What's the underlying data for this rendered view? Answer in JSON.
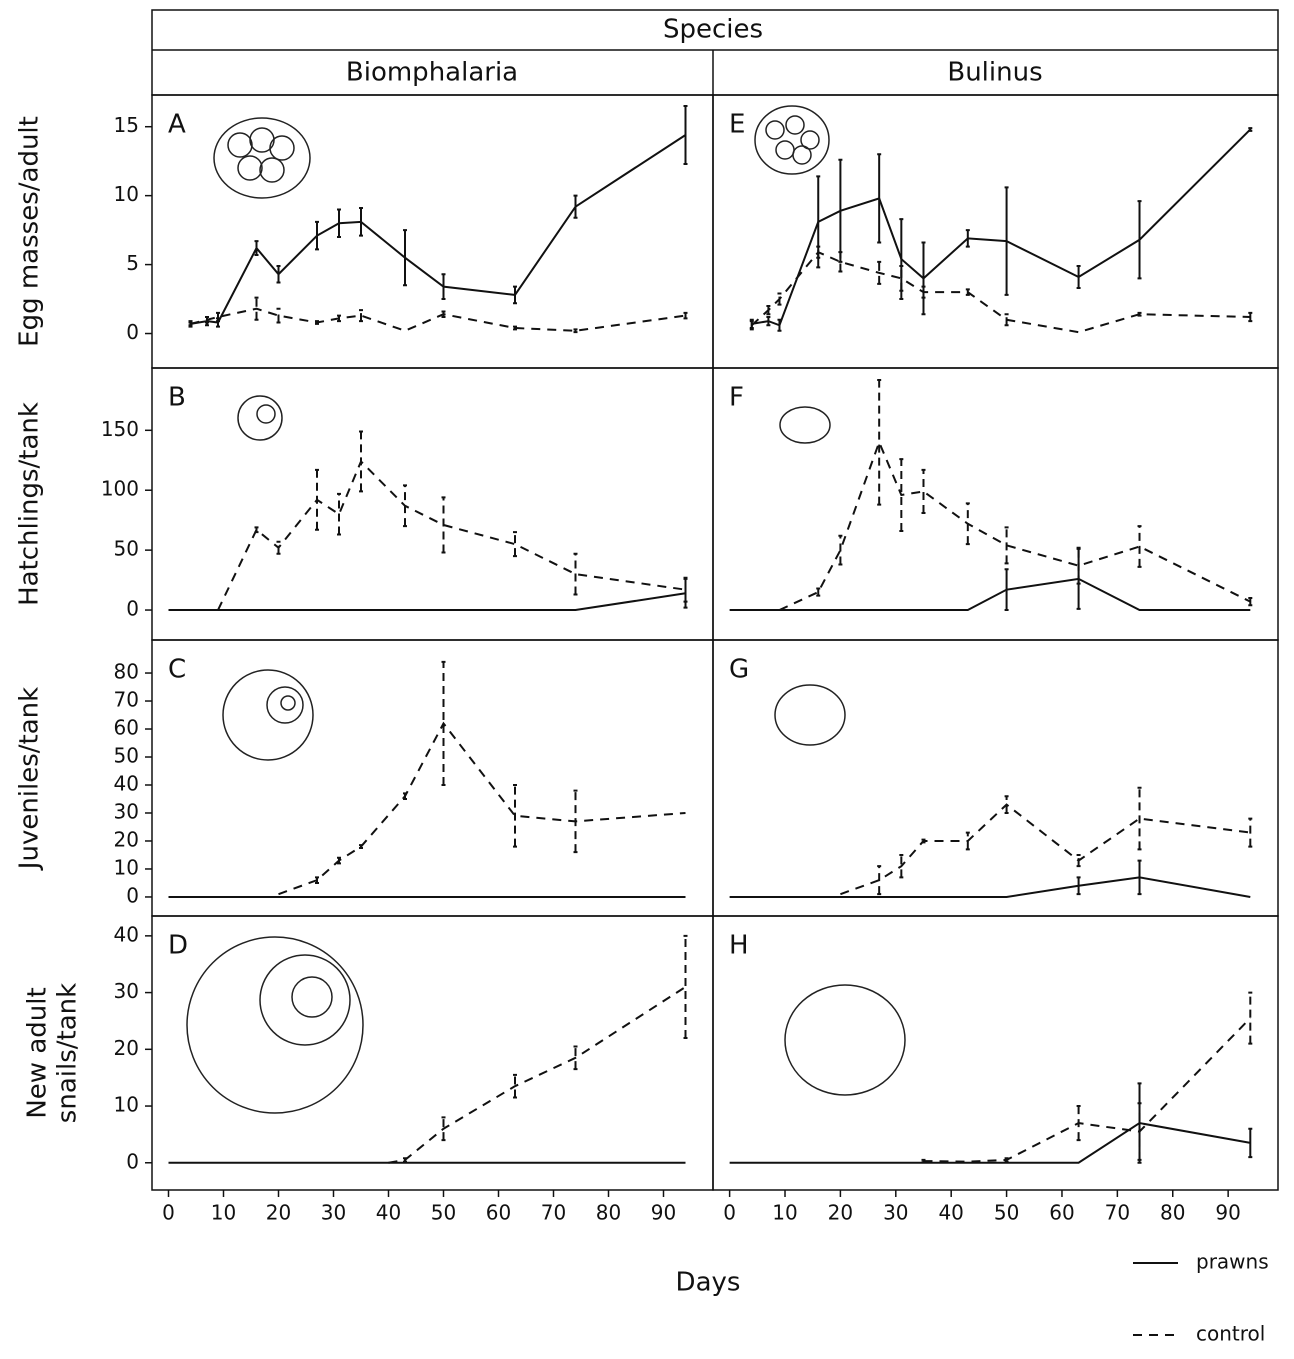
{
  "header": {
    "title": "Species",
    "columns": [
      "Biomphalaria",
      "Bulinus"
    ]
  },
  "x_label": "Days",
  "chart_data": [
    {
      "type": "line",
      "panel": "A",
      "ylabel": "Egg masses/adult",
      "xlim": [
        -3,
        99
      ],
      "ylim": [
        -2.5,
        17.3
      ],
      "yticks": [
        0,
        5,
        10,
        15
      ],
      "x": [
        4,
        7,
        9,
        16,
        20,
        27,
        31,
        35,
        43,
        50,
        63,
        74,
        94
      ],
      "series": [
        {
          "name": "prawns",
          "dash": "solid",
          "values": [
            0.7,
            0.9,
            0.8,
            6.2,
            4.3,
            7.1,
            8.0,
            8.1,
            5.5,
            3.4,
            2.8,
            9.2,
            14.4
          ],
          "errors": [
            0.2,
            0.3,
            0.3,
            0.5,
            0.6,
            1.0,
            1.0,
            1.0,
            2.0,
            0.9,
            0.6,
            0.8,
            2.1
          ]
        },
        {
          "name": "control",
          "dash": "dashed",
          "values": [
            0.7,
            1.0,
            1.2,
            1.8,
            1.3,
            0.8,
            1.1,
            1.3,
            0.2,
            1.4,
            0.4,
            0.2,
            1.3
          ],
          "errors": [
            0.1,
            0.2,
            0.3,
            0.8,
            0.5,
            0.1,
            0.2,
            0.4,
            0,
            0.2,
            0.1,
            0.1,
            0.2
          ]
        }
      ]
    },
    {
      "type": "line",
      "panel": "B",
      "ylabel": "Hatchlings/tank",
      "xlim": [
        -3,
        99
      ],
      "ylim": [
        -25,
        202
      ],
      "yticks": [
        0,
        50,
        100,
        150
      ],
      "x": [
        0,
        9,
        16,
        20,
        27,
        31,
        35,
        43,
        50,
        63,
        74,
        94
      ],
      "series": [
        {
          "name": "prawns",
          "dash": "solid",
          "values": [
            0,
            0,
            0,
            0,
            0,
            0,
            0,
            0,
            0,
            0,
            0,
            14
          ],
          "errors": [
            0,
            0,
            0,
            0,
            0,
            0,
            0,
            0,
            0,
            0,
            0,
            12
          ]
        },
        {
          "name": "control",
          "dash": "dashed",
          "values": [
            null,
            0,
            67,
            52,
            92,
            80,
            124,
            87,
            71,
            55,
            30,
            17
          ],
          "errors": [
            null,
            0,
            2,
            5,
            25,
            17,
            25,
            17,
            23,
            10,
            17,
            10
          ]
        }
      ]
    },
    {
      "type": "line",
      "panel": "C",
      "ylabel": "Juveniles/tank",
      "xlim": [
        -3,
        99
      ],
      "ylim": [
        -6.8,
        91.8
      ],
      "yticks": [
        0,
        10,
        20,
        30,
        40,
        50,
        60,
        70,
        80
      ],
      "x": [
        0,
        20,
        27,
        31,
        35,
        43,
        50,
        63,
        74,
        94
      ],
      "series": [
        {
          "name": "prawns",
          "dash": "solid",
          "values": [
            0,
            0,
            0,
            0,
            0,
            0,
            0,
            0,
            0,
            0
          ],
          "errors": [
            0,
            0,
            0,
            0,
            0,
            0,
            0,
            0,
            0,
            0
          ]
        },
        {
          "name": "control",
          "dash": "dashed",
          "values": [
            null,
            1,
            6,
            13,
            18,
            36,
            62,
            29,
            27,
            30
          ],
          "errors": [
            null,
            0,
            1,
            1,
            0.5,
            1,
            22,
            11,
            11,
            0
          ]
        }
      ]
    },
    {
      "type": "line",
      "panel": "D",
      "ylabel": [
        "New adult",
        "snails/tank"
      ],
      "xlim": [
        -3,
        99
      ],
      "ylim": [
        -4.8,
        43.5
      ],
      "yticks": [
        0,
        10,
        20,
        30,
        40
      ],
      "xticks": [
        0,
        10,
        20,
        30,
        40,
        50,
        60,
        70,
        80,
        90
      ],
      "x": [
        0,
        40,
        43,
        50,
        63,
        74,
        94
      ],
      "series": [
        {
          "name": "prawns",
          "dash": "solid",
          "values": [
            0,
            0,
            0,
            0,
            0,
            0,
            0
          ],
          "errors": [
            0,
            0,
            0,
            0,
            0,
            0,
            0
          ]
        },
        {
          "name": "control",
          "dash": "dashed",
          "values": [
            null,
            0,
            0.5,
            6,
            13.5,
            18.5,
            31
          ],
          "errors": [
            null,
            0,
            0.3,
            2,
            2,
            2,
            9
          ]
        }
      ]
    },
    {
      "type": "line",
      "panel": "E",
      "xlim": [
        -3,
        99
      ],
      "ylim": [
        -2.5,
        17.3
      ],
      "x": [
        4,
        7,
        9,
        16,
        20,
        27,
        31,
        35,
        43,
        50,
        63,
        74,
        94
      ],
      "series": [
        {
          "name": "prawns",
          "dash": "solid",
          "values": [
            0.7,
            0.9,
            0.6,
            8.1,
            8.9,
            9.8,
            5.4,
            4.0,
            6.9,
            6.7,
            4.1,
            6.8,
            14.8
          ],
          "errors": [
            0.3,
            0.3,
            0.4,
            3.3,
            3.7,
            3.2,
            2.9,
            2.6,
            0.6,
            3.9,
            0.8,
            2.8,
            0.1
          ]
        },
        {
          "name": "control",
          "dash": "dashed",
          "values": [
            0.6,
            1.7,
            2.5,
            5.9,
            5.2,
            4.4,
            4.0,
            3.0,
            3.0,
            1.0,
            0.1,
            1.4,
            1.2
          ],
          "errors": [
            0.3,
            0.3,
            0.4,
            0.4,
            0.7,
            0.8,
            0.9,
            0.4,
            0.2,
            0.4,
            0,
            0.1,
            0.3
          ]
        }
      ]
    },
    {
      "type": "line",
      "panel": "F",
      "xlim": [
        -3,
        99
      ],
      "ylim": [
        -25,
        202
      ],
      "x": [
        0,
        9,
        16,
        20,
        27,
        31,
        35,
        43,
        50,
        63,
        74,
        94
      ],
      "series": [
        {
          "name": "prawns",
          "dash": "solid",
          "values": [
            0,
            0,
            0,
            0,
            0,
            0,
            0,
            0,
            17,
            26,
            0,
            0
          ],
          "errors": [
            0,
            0,
            0,
            0,
            0,
            0,
            0,
            0,
            17,
            25,
            0,
            0
          ]
        },
        {
          "name": "control",
          "dash": "dashed",
          "values": [
            null,
            0,
            15,
            50,
            140,
            96,
            99,
            72,
            54,
            37,
            53,
            7
          ],
          "errors": [
            null,
            0,
            3,
            12,
            52,
            30,
            18,
            17,
            15,
            15,
            17,
            3
          ]
        }
      ]
    },
    {
      "type": "line",
      "panel": "G",
      "xlim": [
        -3,
        99
      ],
      "ylim": [
        -6.8,
        91.8
      ],
      "x": [
        0,
        20,
        27,
        31,
        35,
        43,
        50,
        63,
        74,
        94
      ],
      "series": [
        {
          "name": "prawns",
          "dash": "solid",
          "values": [
            0,
            0,
            0,
            0,
            0,
            0,
            0,
            4,
            7,
            0
          ],
          "errors": [
            0,
            0,
            0,
            0,
            0,
            0,
            0,
            3,
            6,
            0
          ]
        },
        {
          "name": "control",
          "dash": "dashed",
          "values": [
            null,
            1,
            6,
            11,
            20,
            20,
            33,
            13,
            28,
            23
          ],
          "errors": [
            null,
            0,
            5,
            4,
            0.5,
            3,
            3,
            2,
            11,
            5
          ]
        }
      ]
    },
    {
      "type": "line",
      "panel": "H",
      "xlim": [
        -3,
        99
      ],
      "ylim": [
        -4.8,
        43.5
      ],
      "xticks": [
        0,
        10,
        20,
        30,
        40,
        50,
        60,
        70,
        80,
        90
      ],
      "x": [
        0,
        35,
        43,
        50,
        63,
        74,
        94
      ],
      "series": [
        {
          "name": "prawns",
          "dash": "solid",
          "values": [
            0,
            0,
            0,
            0,
            0,
            7,
            3.5
          ],
          "errors": [
            0,
            0,
            0,
            0,
            0,
            7,
            2.5
          ]
        },
        {
          "name": "control",
          "dash": "dashed",
          "values": [
            null,
            0.3,
            0.2,
            0.5,
            7,
            5.5,
            25.5
          ],
          "errors": [
            null,
            0.2,
            0,
            0.3,
            3,
            5,
            4.5
          ]
        }
      ]
    }
  ]
}
